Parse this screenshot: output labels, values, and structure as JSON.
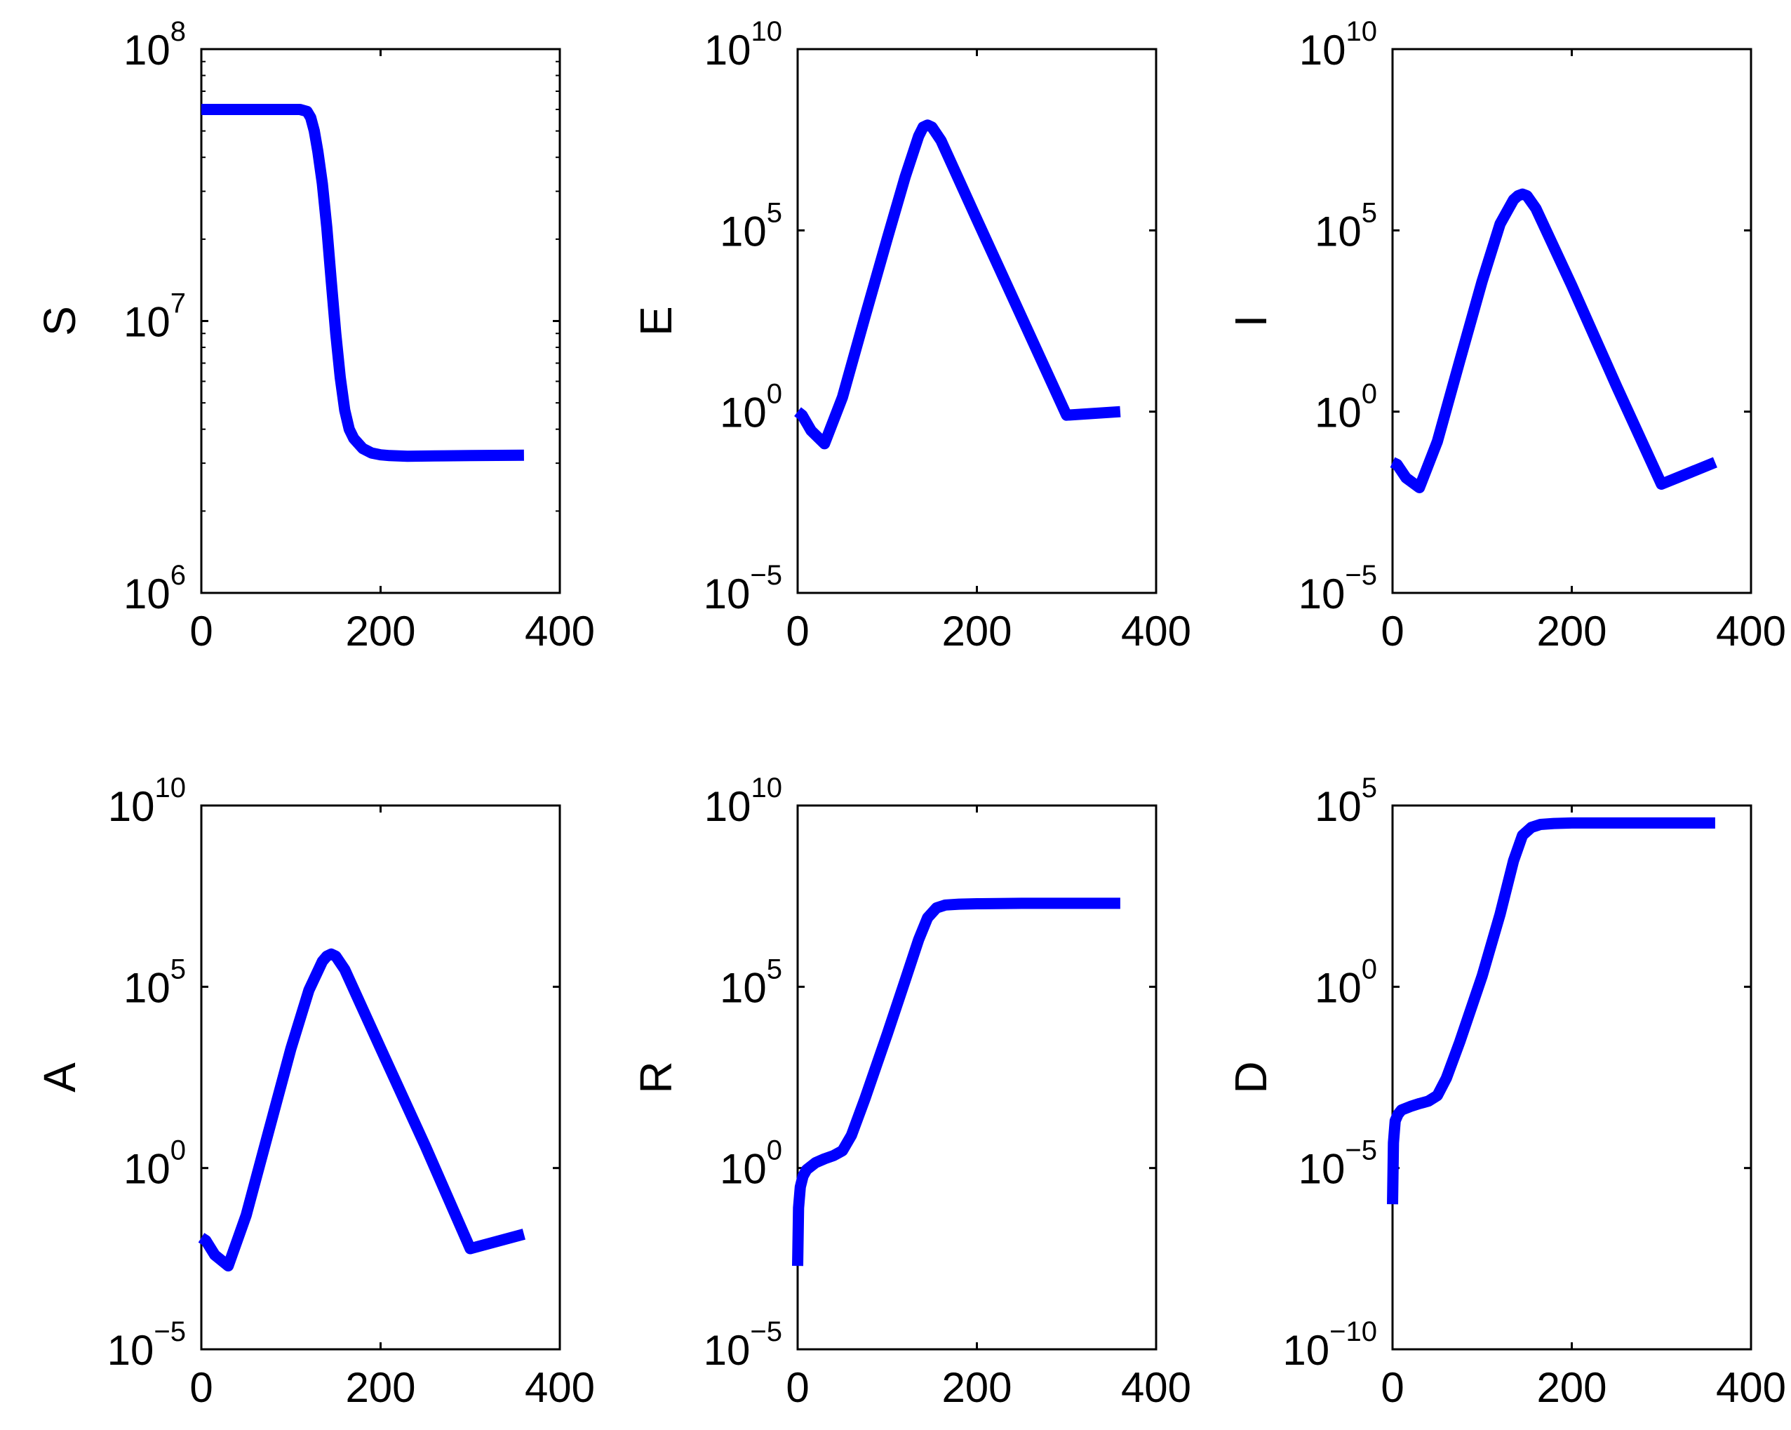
{
  "chart_data": [
    {
      "type": "line",
      "ylabel": "S",
      "yscale": "log",
      "xlim": [
        0,
        400
      ],
      "ylim": [
        1000000,
        100000000
      ],
      "xticks": [
        "0",
        "200",
        "400"
      ],
      "yticks": [
        {
          "base": "10",
          "exp": "6"
        },
        {
          "base": "10",
          "exp": "7"
        },
        {
          "base": "10",
          "exp": "8"
        }
      ],
      "line_color": "#0000ff",
      "series": [
        {
          "x": [
            0,
            60,
            110,
            118,
            122,
            126,
            130,
            135,
            140,
            145,
            150,
            155,
            160,
            165,
            170,
            180,
            190,
            200,
            210,
            230,
            260,
            300,
            360
          ],
          "y": [
            60000000,
            60000000,
            60000000,
            59000000,
            56000000,
            50000000,
            42000000,
            32000000,
            22000000,
            14000000,
            9000000,
            6200000,
            4700000,
            4000000,
            3700000,
            3400000,
            3270000,
            3220000,
            3200000,
            3180000,
            3190000,
            3200000,
            3210000
          ]
        }
      ]
    },
    {
      "type": "line",
      "ylabel": "E",
      "yscale": "log",
      "xlim": [
        0,
        400
      ],
      "ylim": [
        1e-05,
        10000000000
      ],
      "xticks": [
        "0",
        "200",
        "400"
      ],
      "yticks": [
        {
          "base": "10",
          "exp": "−5"
        },
        {
          "base": "10",
          "exp": "0"
        },
        {
          "base": "10",
          "exp": "5"
        },
        {
          "base": "10",
          "exp": "10"
        }
      ],
      "line_color": "#0000ff",
      "series": [
        {
          "x": [
            0,
            5,
            15,
            30,
            50,
            75,
            100,
            120,
            135,
            140,
            145,
            150,
            160,
            200,
            250,
            300,
            360
          ],
          "y": [
            1,
            0.8,
            0.3,
            0.13,
            2.5,
            400,
            60000,
            3000000,
            40000000,
            70000000,
            80000000,
            70000000,
            30000000,
            200000,
            400,
            0.8,
            1
          ]
        }
      ]
    },
    {
      "type": "line",
      "ylabel": "I",
      "yscale": "log",
      "xlim": [
        0,
        400
      ],
      "ylim": [
        1e-05,
        10000000000
      ],
      "xticks": [
        "0",
        "200",
        "400"
      ],
      "yticks": [
        {
          "base": "10",
          "exp": "−5"
        },
        {
          "base": "10",
          "exp": "0"
        },
        {
          "base": "10",
          "exp": "5"
        },
        {
          "base": "10",
          "exp": "10"
        }
      ],
      "line_color": "#0000ff",
      "series": [
        {
          "x": [
            0,
            5,
            15,
            30,
            50,
            75,
            100,
            120,
            135,
            140,
            145,
            150,
            160,
            200,
            250,
            300,
            360
          ],
          "y": [
            0.04,
            0.035,
            0.015,
            0.008,
            0.15,
            25,
            4000,
            150000,
            700000,
            900000,
            1000000,
            900000,
            400000,
            3000,
            5,
            0.01,
            0.04
          ]
        }
      ]
    },
    {
      "type": "line",
      "ylabel": "A",
      "yscale": "log",
      "xlim": [
        0,
        400
      ],
      "ylim": [
        1e-05,
        10000000000
      ],
      "xticks": [
        "0",
        "200",
        "400"
      ],
      "yticks": [
        {
          "base": "10",
          "exp": "−5"
        },
        {
          "base": "10",
          "exp": "0"
        },
        {
          "base": "10",
          "exp": "5"
        },
        {
          "base": "10",
          "exp": "10"
        }
      ],
      "line_color": "#0000ff",
      "series": [
        {
          "x": [
            0,
            5,
            15,
            30,
            50,
            75,
            100,
            120,
            135,
            140,
            145,
            150,
            160,
            200,
            250,
            300,
            360
          ],
          "y": [
            0.012,
            0.01,
            0.004,
            0.002,
            0.05,
            10,
            2000,
            80000,
            500000,
            700000,
            800000,
            700000,
            300000,
            2000,
            4,
            0.006,
            0.015
          ]
        }
      ]
    },
    {
      "type": "line",
      "ylabel": "R",
      "yscale": "log",
      "xlim": [
        0,
        400
      ],
      "ylim": [
        1e-05,
        10000000000
      ],
      "xticks": [
        "0",
        "200",
        "400"
      ],
      "yticks": [
        {
          "base": "10",
          "exp": "−5"
        },
        {
          "base": "10",
          "exp": "0"
        },
        {
          "base": "10",
          "exp": "5"
        },
        {
          "base": "10",
          "exp": "10"
        }
      ],
      "line_color": "#0000ff",
      "series": [
        {
          "x": [
            0,
            1,
            3,
            6,
            10,
            20,
            30,
            40,
            50,
            60,
            75,
            100,
            120,
            135,
            145,
            155,
            165,
            180,
            200,
            250,
            300,
            360
          ],
          "y": [
            0.002,
            0.08,
            0.3,
            0.6,
            0.9,
            1.4,
            1.8,
            2.2,
            3,
            8,
            80,
            5000,
            150000,
            2000000,
            8000000,
            15000000,
            18000000,
            19000000,
            19500000,
            20000000,
            20000000,
            20000000
          ]
        }
      ]
    },
    {
      "type": "line",
      "ylabel": "D",
      "yscale": "log",
      "xlim": [
        0,
        400
      ],
      "ylim": [
        1e-10,
        100000
      ],
      "xticks": [
        "0",
        "200",
        "400"
      ],
      "yticks": [
        {
          "base": "10",
          "exp": "−10"
        },
        {
          "base": "10",
          "exp": "−5"
        },
        {
          "base": "10",
          "exp": "0"
        },
        {
          "base": "10",
          "exp": "5"
        }
      ],
      "line_color": "#0000ff",
      "series": [
        {
          "x": [
            0,
            1,
            3,
            6,
            10,
            20,
            30,
            40,
            50,
            60,
            75,
            100,
            120,
            135,
            145,
            155,
            165,
            180,
            200,
            250,
            300,
            360
          ],
          "y": [
            1e-06,
            5e-05,
            0.0002,
            0.0003,
            0.0004,
            0.0005,
            0.0006,
            0.0007,
            0.001,
            0.003,
            0.03,
            2,
            100,
            3000,
            15000,
            25000,
            30000,
            32000,
            33000,
            33000,
            33000,
            33000
          ]
        }
      ]
    }
  ]
}
